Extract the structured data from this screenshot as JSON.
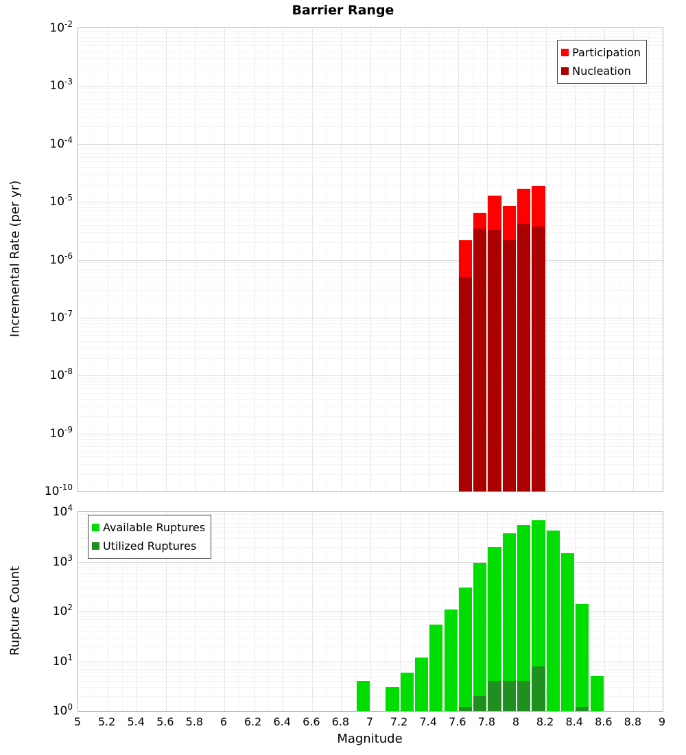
{
  "title": "Barrier Range",
  "xlabel": "Magnitude",
  "chart_data": [
    {
      "type": "bar",
      "title": "Barrier Range",
      "ylabel": "Incremental Rate (per yr)",
      "xlabel": "Magnitude",
      "x_range": [
        5,
        9
      ],
      "x_tick_step": 0.2,
      "y_scale": "log",
      "y_range": [
        1e-10,
        0.01
      ],
      "bin_width": 0.1,
      "grid": true,
      "legend_position": "top-right",
      "series": [
        {
          "name": "Participation",
          "color": "#ff0000",
          "x": [
            7.65,
            7.75,
            7.85,
            7.95,
            8.05,
            8.15
          ],
          "values": [
            2.2e-06,
            6.5e-06,
            1.3e-05,
            8.5e-06,
            1.7e-05,
            1.9e-05
          ]
        },
        {
          "name": "Nucleation",
          "color": "#aa0000",
          "x": [
            7.65,
            7.75,
            7.85,
            7.95,
            8.05,
            8.15
          ],
          "values": [
            5e-07,
            3.5e-06,
            3.3e-06,
            2.2e-06,
            4.2e-06,
            3.8e-06
          ]
        }
      ]
    },
    {
      "type": "bar",
      "title": "",
      "ylabel": "Rupture Count",
      "xlabel": "Magnitude",
      "x_range": [
        5,
        9
      ],
      "x_tick_step": 0.2,
      "y_scale": "log",
      "y_range": [
        1,
        10000
      ],
      "bin_width": 0.1,
      "grid": true,
      "legend_position": "top-left",
      "series": [
        {
          "name": "Available Ruptures",
          "color": "#00dd00",
          "x": [
            6.95,
            7.15,
            7.25,
            7.35,
            7.45,
            7.55,
            7.65,
            7.75,
            7.85,
            7.95,
            8.05,
            8.15,
            8.25,
            8.35,
            8.45,
            8.55
          ],
          "values": [
            4,
            3,
            6,
            12,
            55,
            110,
            300,
            950,
            2000,
            3700,
            5500,
            6800,
            4300,
            1500,
            140,
            5
          ]
        },
        {
          "name": "Utilized Ruptures",
          "color": "#1f8f1f",
          "x": [
            7.65,
            7.75,
            7.85,
            7.95,
            8.05,
            8.15,
            8.45
          ],
          "values": [
            1,
            2,
            4,
            4,
            4,
            8,
            1
          ]
        }
      ]
    }
  ]
}
